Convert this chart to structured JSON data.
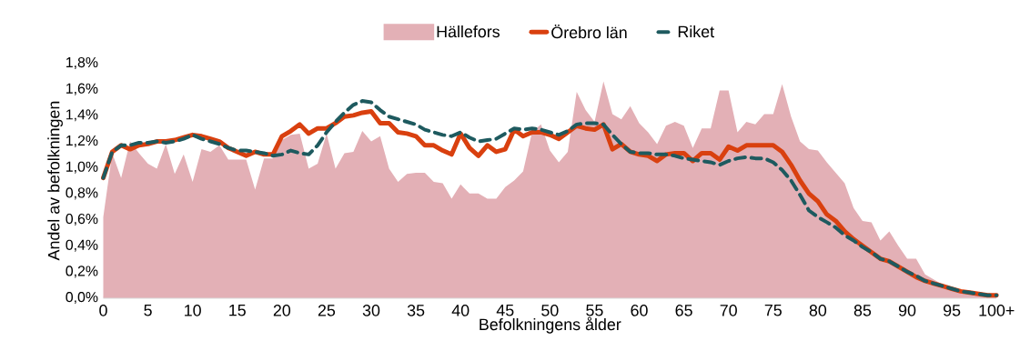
{
  "chart_data": {
    "type": "line",
    "xlabel": "Befolkningens ålder",
    "ylabel": "Andel av befolkningen",
    "x": [
      0,
      1,
      2,
      3,
      4,
      5,
      6,
      7,
      8,
      9,
      10,
      11,
      12,
      13,
      14,
      15,
      16,
      17,
      18,
      19,
      20,
      21,
      22,
      23,
      24,
      25,
      26,
      27,
      28,
      29,
      30,
      31,
      32,
      33,
      34,
      35,
      36,
      37,
      38,
      39,
      40,
      41,
      42,
      43,
      44,
      45,
      46,
      47,
      48,
      49,
      50,
      51,
      52,
      53,
      54,
      55,
      56,
      57,
      58,
      59,
      60,
      61,
      62,
      63,
      64,
      65,
      66,
      67,
      68,
      69,
      70,
      71,
      72,
      73,
      74,
      75,
      76,
      77,
      78,
      79,
      80,
      81,
      82,
      83,
      84,
      85,
      86,
      87,
      88,
      89,
      90,
      91,
      92,
      93,
      94,
      95,
      96,
      97,
      98,
      99,
      100
    ],
    "series": [
      {
        "name": "Hällefors",
        "type": "area",
        "color": "#e3b0b6",
        "values": [
          0.62,
          1.11,
          0.92,
          1.2,
          1.11,
          1.03,
          0.99,
          1.18,
          0.95,
          1.1,
          0.89,
          1.14,
          1.12,
          1.17,
          1.06,
          1.06,
          1.06,
          0.83,
          1.07,
          1.07,
          1.21,
          1.25,
          1.26,
          0.99,
          1.03,
          1.26,
          0.99,
          1.11,
          1.12,
          1.28,
          1.2,
          1.24,
          0.99,
          0.89,
          0.95,
          0.96,
          0.96,
          0.89,
          0.88,
          0.76,
          0.87,
          0.8,
          0.8,
          0.76,
          0.76,
          0.85,
          0.9,
          0.97,
          1.27,
          1.33,
          1.13,
          1.04,
          1.12,
          1.58,
          1.44,
          1.35,
          1.66,
          1.41,
          1.37,
          1.47,
          1.34,
          1.27,
          1.18,
          1.32,
          1.35,
          1.32,
          1.15,
          1.3,
          1.3,
          1.59,
          1.59,
          1.27,
          1.35,
          1.33,
          1.41,
          1.41,
          1.64,
          1.39,
          1.2,
          1.14,
          1.13,
          1.04,
          0.96,
          0.88,
          0.69,
          0.59,
          0.58,
          0.44,
          0.51,
          0.4,
          0.3,
          0.3,
          0.18,
          0.14,
          0.1,
          0.08,
          0.06,
          0.05,
          0.03,
          0.02,
          0.02
        ]
      },
      {
        "name": "Örebro län",
        "color": "#d9400f",
        "values": [
          0.92,
          1.12,
          1.17,
          1.14,
          1.17,
          1.18,
          1.2,
          1.2,
          1.21,
          1.23,
          1.25,
          1.24,
          1.22,
          1.2,
          1.15,
          1.12,
          1.09,
          1.12,
          1.1,
          1.1,
          1.24,
          1.28,
          1.33,
          1.26,
          1.3,
          1.3,
          1.34,
          1.39,
          1.4,
          1.42,
          1.43,
          1.34,
          1.34,
          1.27,
          1.26,
          1.24,
          1.17,
          1.17,
          1.13,
          1.1,
          1.26,
          1.15,
          1.09,
          1.17,
          1.12,
          1.14,
          1.29,
          1.24,
          1.27,
          1.27,
          1.25,
          1.22,
          1.27,
          1.32,
          1.3,
          1.29,
          1.33,
          1.14,
          1.18,
          1.12,
          1.1,
          1.09,
          1.05,
          1.1,
          1.11,
          1.11,
          1.05,
          1.11,
          1.11,
          1.06,
          1.16,
          1.13,
          1.17,
          1.17,
          1.17,
          1.17,
          1.12,
          1.02,
          0.9,
          0.8,
          0.74,
          0.64,
          0.59,
          0.51,
          0.45,
          0.4,
          0.35,
          0.3,
          0.28,
          0.24,
          0.2,
          0.16,
          0.13,
          0.11,
          0.09,
          0.07,
          0.05,
          0.04,
          0.03,
          0.02,
          0.02
        ]
      },
      {
        "name": "Riket",
        "color": "#1e5a5f",
        "line_style": "dashed",
        "values": [
          0.92,
          1.12,
          1.17,
          1.17,
          1.19,
          1.19,
          1.2,
          1.19,
          1.2,
          1.22,
          1.25,
          1.22,
          1.2,
          1.18,
          1.15,
          1.13,
          1.13,
          1.12,
          1.11,
          1.09,
          1.1,
          1.13,
          1.11,
          1.1,
          1.17,
          1.27,
          1.35,
          1.42,
          1.48,
          1.51,
          1.5,
          1.44,
          1.39,
          1.37,
          1.35,
          1.33,
          1.29,
          1.27,
          1.25,
          1.24,
          1.27,
          1.23,
          1.2,
          1.21,
          1.22,
          1.26,
          1.3,
          1.29,
          1.3,
          1.29,
          1.27,
          1.25,
          1.28,
          1.33,
          1.34,
          1.34,
          1.33,
          1.25,
          1.18,
          1.12,
          1.11,
          1.11,
          1.1,
          1.1,
          1.09,
          1.07,
          1.06,
          1.05,
          1.04,
          1.02,
          1.05,
          1.07,
          1.08,
          1.07,
          1.07,
          1.04,
          0.98,
          0.9,
          0.79,
          0.67,
          0.62,
          0.58,
          0.54,
          0.48,
          0.44,
          0.39,
          0.35,
          0.3,
          0.28,
          0.24,
          0.2,
          0.17,
          0.13,
          0.11,
          0.09,
          0.07,
          0.05,
          0.04,
          0.03,
          0.02,
          0.02
        ]
      }
    ],
    "xlim": [
      0,
      100
    ],
    "ylim": [
      0,
      1.8
    ],
    "xticks": [
      0,
      5,
      10,
      15,
      20,
      25,
      30,
      35,
      40,
      45,
      50,
      55,
      60,
      65,
      70,
      75,
      80,
      85,
      90,
      95,
      {
        "value": 100,
        "label": "100+"
      }
    ],
    "yticks": [
      {
        "value": 0,
        "label": "0,0%"
      },
      {
        "value": 0.2,
        "label": "0,2%"
      },
      {
        "value": 0.4,
        "label": "0,4%"
      },
      {
        "value": 0.6,
        "label": "0,6%"
      },
      {
        "value": 0.8,
        "label": "0,8%"
      },
      {
        "value": 1.0,
        "label": "1,0%"
      },
      {
        "value": 1.2,
        "label": "1,2%"
      },
      {
        "value": 1.4,
        "label": "1,4%"
      },
      {
        "value": 1.6,
        "label": "1,6%"
      },
      {
        "value": 1.8,
        "label": "1,8%"
      }
    ],
    "legend": "top"
  }
}
